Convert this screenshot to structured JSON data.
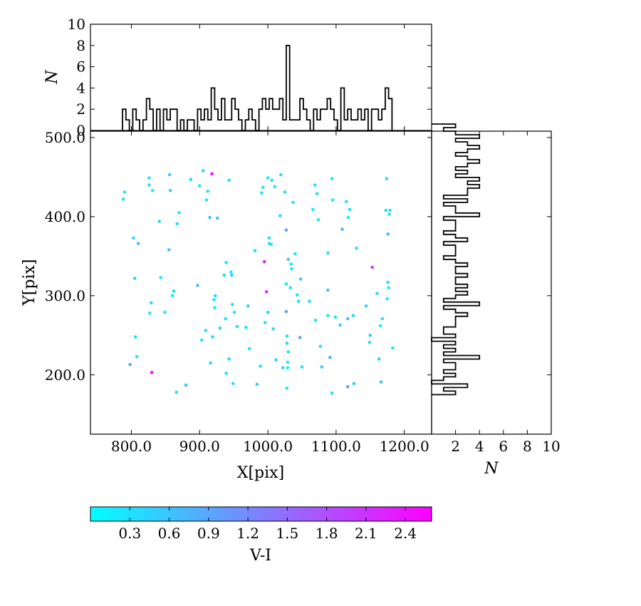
{
  "chart_data": [
    {
      "type": "scatter",
      "role": "main",
      "xlabel": "X[pix]",
      "ylabel": "Y[pix]",
      "xlim": [
        740,
        1240
      ],
      "ylim": [
        125,
        508
      ],
      "xticks": [
        800,
        900,
        1000,
        1100,
        1200
      ],
      "xtick_labels": [
        "800.0",
        "900.0",
        "1000.0",
        "1100.0",
        "1200.0"
      ],
      "yticks": [
        200,
        300,
        400,
        500
      ],
      "ytick_labels": [
        "200.0",
        "300.0",
        "400.0",
        "500.0"
      ],
      "color_variable": "V-I",
      "points": [
        [
          788,
          422,
          0.25
        ],
        [
          790,
          431,
          0.15
        ],
        [
          798,
          213,
          0.8
        ],
        [
          803,
          373,
          0.3
        ],
        [
          805,
          322,
          0.4
        ],
        [
          806,
          248,
          0.3
        ],
        [
          808,
          223,
          0.3
        ],
        [
          810,
          366,
          0.6
        ],
        [
          826,
          449,
          0.35
        ],
        [
          826,
          440,
          0.3
        ],
        [
          827,
          278,
          0.3
        ],
        [
          829,
          291,
          0.4
        ],
        [
          830,
          203,
          2.5
        ],
        [
          831,
          433,
          0.2
        ],
        [
          841,
          394,
          0.35
        ],
        [
          843,
          323,
          0.2
        ],
        [
          849,
          279,
          0.2
        ],
        [
          855,
          358,
          0.6
        ],
        [
          856,
          453,
          0.55
        ],
        [
          857,
          433,
          0.6
        ],
        [
          860,
          300,
          0.2
        ],
        [
          862,
          306,
          0.25
        ],
        [
          866,
          178,
          0.3
        ],
        [
          867,
          391,
          0.3
        ],
        [
          870,
          405,
          0.2
        ],
        [
          880,
          187,
          0.6
        ],
        [
          887,
          447,
          0.3
        ],
        [
          897,
          313,
          0.7
        ],
        [
          900,
          439,
          0.2
        ],
        [
          903,
          244,
          0.4
        ],
        [
          905,
          458,
          0.4
        ],
        [
          909,
          256,
          0.4
        ],
        [
          910,
          421,
          0.3
        ],
        [
          912,
          432,
          0.2
        ],
        [
          915,
          399,
          0.6
        ],
        [
          916,
          215,
          0.35
        ],
        [
          918,
          454,
          2.6
        ],
        [
          919,
          248,
          0.3
        ],
        [
          921,
          295,
          0.3
        ],
        [
          922,
          285,
          0.25
        ],
        [
          923,
          300,
          0.4
        ],
        [
          926,
          398,
          0.6
        ],
        [
          930,
          259,
          0.4
        ],
        [
          936,
          326,
          0.4
        ],
        [
          938,
          271,
          0.3
        ],
        [
          939,
          342,
          0.2
        ],
        [
          939,
          202,
          0.3
        ],
        [
          943,
          220,
          0.4
        ],
        [
          943,
          446,
          0.3
        ],
        [
          946,
          330,
          0.25
        ],
        [
          947,
          326,
          0.5
        ],
        [
          948,
          289,
          0.2
        ],
        [
          949,
          189,
          0.3
        ],
        [
          951,
          279,
          0.3
        ],
        [
          955,
          261,
          0.4
        ],
        [
          968,
          260,
          0.3
        ],
        [
          971,
          287,
          0.5
        ],
        [
          973,
          233,
          0.3
        ],
        [
          981,
          357,
          0.3
        ],
        [
          984,
          188,
          0.45
        ],
        [
          989,
          211,
          0.4
        ],
        [
          991,
          430,
          0.3
        ],
        [
          993,
          437,
          0.3
        ],
        [
          995,
          343,
          2.3
        ],
        [
          996,
          266,
          0.3
        ],
        [
          998,
          305,
          2.1
        ],
        [
          1000,
          449,
          0.3
        ],
        [
          1000,
          279,
          0.3
        ],
        [
          1002,
          373,
          0.3
        ],
        [
          1002,
          366,
          0.3
        ],
        [
          1005,
          365,
          0.2
        ],
        [
          1006,
          446,
          0.3
        ],
        [
          1008,
          258,
          0.3
        ],
        [
          1010,
          438,
          0.2
        ],
        [
          1012,
          219,
          0.4
        ],
        [
          1018,
          401,
          0.3
        ],
        [
          1019,
          453,
          0.3
        ],
        [
          1022,
          209,
          0.5
        ],
        [
          1025,
          431,
          0.3
        ],
        [
          1027,
          315,
          0.3
        ],
        [
          1027,
          383,
          0.9
        ],
        [
          1027,
          280,
          0.9
        ],
        [
          1028,
          249,
          0.3
        ],
        [
          1028,
          183,
          0.2
        ],
        [
          1028,
          240,
          0.3
        ],
        [
          1029,
          209,
          0.2
        ],
        [
          1029,
          216,
          0.2
        ],
        [
          1030,
          229,
          0.3
        ],
        [
          1030,
          346,
          0.6
        ],
        [
          1033,
          310,
          0.3
        ],
        [
          1034,
          340,
          0.3
        ],
        [
          1035,
          334,
          0.3
        ],
        [
          1037,
          418,
          0.2
        ],
        [
          1040,
          353,
          0.2
        ],
        [
          1043,
          301,
          0.3
        ],
        [
          1045,
          293,
          0.4
        ],
        [
          1047,
          247,
          1.0
        ],
        [
          1048,
          321,
          0.7
        ],
        [
          1050,
          210,
          0.3
        ],
        [
          1061,
          293,
          0.3
        ],
        [
          1066,
          409,
          0.2
        ],
        [
          1069,
          440,
          0.3
        ],
        [
          1070,
          269,
          0.3
        ],
        [
          1072,
          429,
          0.3
        ],
        [
          1074,
          396,
          0.3
        ],
        [
          1077,
          236,
          0.3
        ],
        [
          1079,
          210,
          0.5
        ],
        [
          1088,
          307,
          0.6
        ],
        [
          1088,
          354,
          0.3
        ],
        [
          1088,
          275,
          0.2
        ],
        [
          1091,
          222,
          0.8
        ],
        [
          1094,
          177,
          0.3
        ],
        [
          1094,
          448,
          0.3
        ],
        [
          1095,
          421,
          0.3
        ],
        [
          1099,
          273,
          0.2
        ],
        [
          1106,
          263,
          0.5
        ],
        [
          1109,
          384,
          0.7
        ],
        [
          1115,
          419,
          0.4
        ],
        [
          1117,
          271,
          0.7
        ],
        [
          1117,
          185,
          0.9
        ],
        [
          1118,
          399,
          0.2
        ],
        [
          1120,
          409,
          0.3
        ],
        [
          1125,
          275,
          0.4
        ],
        [
          1126,
          189,
          0.5
        ],
        [
          1130,
          360,
          0.3
        ],
        [
          1144,
          287,
          0.4
        ],
        [
          1149,
          241,
          0.3
        ],
        [
          1150,
          250,
          0.5
        ],
        [
          1153,
          336,
          2.0
        ],
        [
          1160,
          303,
          0.3
        ],
        [
          1163,
          220,
          0.5
        ],
        [
          1165,
          262,
          0.2
        ],
        [
          1166,
          191,
          0.6
        ],
        [
          1168,
          271,
          0.3
        ],
        [
          1173,
          408,
          0.3
        ],
        [
          1174,
          448,
          0.3
        ],
        [
          1175,
          296,
          0.2
        ],
        [
          1176,
          378,
          0.6
        ],
        [
          1176,
          317,
          0.3
        ],
        [
          1177,
          310,
          0.2
        ],
        [
          1178,
          403,
          0.3
        ],
        [
          1179,
          408,
          0.35
        ],
        [
          1183,
          234,
          0.3
        ]
      ]
    },
    {
      "type": "histogram",
      "role": "top",
      "orientation": "vertical",
      "ylabel": "N",
      "xlim": [
        740,
        1240
      ],
      "ylim": [
        0,
        10
      ],
      "yticks": [
        0,
        2,
        4,
        6,
        8,
        10
      ],
      "ytick_labels": [
        "0",
        "2",
        "4",
        "6",
        "8",
        "10"
      ],
      "bin_start": 787,
      "bin_width": 5,
      "counts": [
        2,
        1,
        0,
        2,
        1,
        0,
        1,
        3,
        2,
        0,
        2,
        0,
        2,
        1,
        2,
        2,
        0,
        1,
        0,
        1,
        1,
        0,
        2,
        1,
        2,
        1,
        4,
        2,
        1,
        3,
        1,
        1,
        3,
        2,
        1,
        0,
        1,
        2,
        1,
        0,
        2,
        3,
        2,
        3,
        2,
        2,
        3,
        1,
        8,
        1,
        1,
        1,
        3,
        2,
        1,
        0,
        2,
        1,
        2,
        2,
        3,
        2,
        1,
        0,
        4,
        1,
        2,
        1,
        1,
        2,
        1,
        2,
        0,
        2,
        2,
        1,
        2,
        4,
        3
      ]
    },
    {
      "type": "histogram",
      "role": "right",
      "orientation": "horizontal",
      "xlabel": "N",
      "xlim": [
        0,
        10
      ],
      "ylim": [
        125,
        508
      ],
      "xticks": [
        0,
        2,
        4,
        6,
        8,
        10
      ],
      "xtick_labels": [
        "0",
        "2",
        "4",
        "6",
        "8",
        "10"
      ],
      "bin_start": 175,
      "bin_width": 4.5,
      "counts": [
        2,
        1,
        3,
        0,
        1,
        2,
        1,
        2,
        2,
        1,
        4,
        1,
        2,
        1,
        2,
        0,
        2,
        1,
        1,
        2,
        2,
        2,
        3,
        2,
        1,
        4,
        1,
        2,
        3,
        2,
        3,
        2,
        2,
        3,
        2,
        2,
        3,
        2,
        1,
        2,
        2,
        2,
        1,
        3,
        2,
        1,
        2,
        2,
        2,
        1,
        4,
        2,
        2,
        1,
        3,
        1,
        3,
        3,
        4,
        3,
        4,
        2,
        3,
        2,
        3,
        4,
        3,
        2,
        3,
        4,
        3,
        2,
        4,
        2,
        1,
        2
      ]
    }
  ],
  "colorbar": {
    "label": "V-I",
    "vmin": 0.0,
    "vmax": 2.6,
    "ticks": [
      0.3,
      0.6,
      0.9,
      1.2,
      1.5,
      1.8,
      2.1,
      2.4
    ],
    "tick_labels": [
      "0.3",
      "0.6",
      "0.9",
      "1.2",
      "1.5",
      "1.8",
      "2.1",
      "2.4"
    ],
    "colormap": "cool",
    "color_low": "#00ffff",
    "color_high": "#ff00ff"
  },
  "colors": {
    "histogram_outline": "#000000",
    "axes": "#000000"
  }
}
